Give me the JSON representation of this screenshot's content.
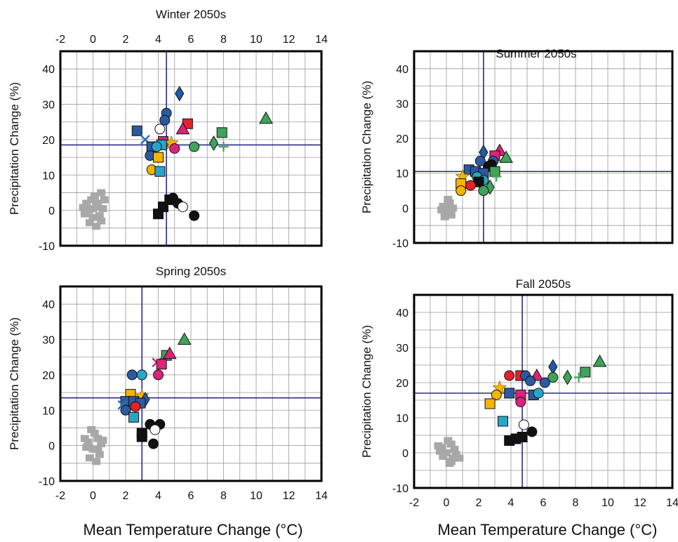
{
  "figure": {
    "xlabel": "Mean Temperature Change (°C)",
    "ylabel": "Precipitation Change (%)"
  },
  "chart_data": [
    {
      "type": "scatter",
      "title": "Winter 2050s",
      "xlabel": "",
      "ylabel": "Precipitation Change (%)",
      "xlim": [
        -2,
        14
      ],
      "ylim": [
        -10,
        45
      ],
      "xticks": [
        -2,
        0,
        2,
        4,
        6,
        8,
        10,
        12,
        14
      ],
      "yticks": [
        -10,
        0,
        10,
        20,
        30,
        40
      ],
      "xtick_position": "top",
      "grid": true,
      "reference_lines": {
        "x": 4.5,
        "y": 18.5
      },
      "gray_cloud": [
        [
          0.0,
          -2
        ],
        [
          -0.3,
          0
        ],
        [
          0.3,
          2
        ],
        [
          0.5,
          -3
        ],
        [
          -0.5,
          -1
        ],
        [
          0.1,
          4
        ],
        [
          0.6,
          0.5
        ],
        [
          -0.2,
          -3.5
        ],
        [
          0.4,
          -1.5
        ],
        [
          0.2,
          1
        ],
        [
          -0.4,
          2
        ],
        [
          0.7,
          3
        ],
        [
          0.0,
          0.5
        ],
        [
          -0.6,
          0.8
        ],
        [
          0.2,
          -4.5
        ],
        [
          0.5,
          5
        ],
        [
          -0.1,
          3
        ]
      ],
      "points": [
        {
          "x": 5.3,
          "y": 33,
          "marker": "diamond",
          "color": "#1f5aa6"
        },
        {
          "x": 10.6,
          "y": 26,
          "marker": "triangle",
          "color": "#3fa35a"
        },
        {
          "x": 4.5,
          "y": 27.5,
          "marker": "circle",
          "color": "#2c5aa0"
        },
        {
          "x": 4.4,
          "y": 25.5,
          "marker": "circle",
          "color": "#2c5aa0"
        },
        {
          "x": 2.7,
          "y": 22.5,
          "marker": "square",
          "color": "#2c5aa0"
        },
        {
          "x": 3.2,
          "y": 20,
          "marker": "x",
          "color": "#2c6fb8"
        },
        {
          "x": 5.8,
          "y": 24.5,
          "marker": "square",
          "color": "#e5202a"
        },
        {
          "x": 5.5,
          "y": 23,
          "marker": "triangle",
          "color": "#d9247a"
        },
        {
          "x": 4.1,
          "y": 23,
          "marker": "circle",
          "color": "#ffffff"
        },
        {
          "x": 7.9,
          "y": 22,
          "marker": "square",
          "color": "#3fa35a"
        },
        {
          "x": 8.0,
          "y": 18,
          "marker": "plus",
          "color": "#3fa35a"
        },
        {
          "x": 7.4,
          "y": 19,
          "marker": "diamond",
          "color": "#3fa35a"
        },
        {
          "x": 6.2,
          "y": 18,
          "marker": "circle",
          "color": "#3fa35a"
        },
        {
          "x": 4.3,
          "y": 19.5,
          "marker": "square",
          "color": "#d9247a"
        },
        {
          "x": 4.8,
          "y": 19,
          "marker": "star",
          "color": "#f5b400"
        },
        {
          "x": 4.2,
          "y": 18.5,
          "marker": "square",
          "color": "#2aa5c7"
        },
        {
          "x": 5.0,
          "y": 17.5,
          "marker": "circle",
          "color": "#d9247a"
        },
        {
          "x": 3.6,
          "y": 18,
          "marker": "square",
          "color": "#2c5aa0"
        },
        {
          "x": 3.9,
          "y": 18,
          "marker": "circle",
          "color": "#2aa5c7"
        },
        {
          "x": 3.5,
          "y": 15.5,
          "marker": "circle",
          "color": "#2c5aa0"
        },
        {
          "x": 4.0,
          "y": 15,
          "marker": "square",
          "color": "#f5b400"
        },
        {
          "x": 3.6,
          "y": 11.5,
          "marker": "circle",
          "color": "#f5b400"
        },
        {
          "x": 4.1,
          "y": 11,
          "marker": "square",
          "color": "#2aa5c7"
        },
        {
          "x": 4.9,
          "y": 3.5,
          "marker": "circle",
          "color": "#111111"
        },
        {
          "x": 5.2,
          "y": 2,
          "marker": "circle",
          "color": "#111111"
        },
        {
          "x": 5.5,
          "y": 1,
          "marker": "circle",
          "color": "#ffffff"
        },
        {
          "x": 4.7,
          "y": 3,
          "marker": "square",
          "color": "#111111"
        },
        {
          "x": 4.3,
          "y": 1,
          "marker": "square",
          "color": "#111111"
        },
        {
          "x": 4.0,
          "y": -1,
          "marker": "square",
          "color": "#111111"
        },
        {
          "x": 6.2,
          "y": -1.5,
          "marker": "circle",
          "color": "#111111"
        }
      ]
    },
    {
      "type": "scatter",
      "title": "Summer 2050s",
      "xlabel": "",
      "ylabel": "Precipitation Change (%)",
      "xlim": [
        -2,
        14
      ],
      "ylim": [
        -10,
        45
      ],
      "xticks": [
        -2,
        0,
        2,
        4,
        6,
        8,
        10,
        12,
        14
      ],
      "yticks": [
        -10,
        0,
        10,
        20,
        30,
        40
      ],
      "xtick_position": "none",
      "grid": true,
      "reference_lines": {
        "x": 2.3,
        "y": 10.5
      },
      "gray_cloud": [
        [
          0.0,
          -1
        ],
        [
          -0.2,
          0.5
        ],
        [
          0.2,
          1.5
        ],
        [
          0.3,
          -2
        ],
        [
          -0.3,
          -0.5
        ],
        [
          0.1,
          2.5
        ],
        [
          0.4,
          0
        ],
        [
          -0.1,
          -2.5
        ],
        [
          0.2,
          -0.5
        ]
      ],
      "points": [
        {
          "x": 2.3,
          "y": 16,
          "marker": "diamond",
          "color": "#1f5aa6"
        },
        {
          "x": 3.3,
          "y": 16.5,
          "marker": "triangle",
          "color": "#d9247a"
        },
        {
          "x": 3.0,
          "y": 15,
          "marker": "square",
          "color": "#d9247a"
        },
        {
          "x": 3.7,
          "y": 14.5,
          "marker": "triangle",
          "color": "#3fa35a"
        },
        {
          "x": 2.1,
          "y": 13.5,
          "marker": "circle",
          "color": "#2c5aa0"
        },
        {
          "x": 2.9,
          "y": 13.5,
          "marker": "circle",
          "color": "#2c5aa0"
        },
        {
          "x": 2.6,
          "y": 12,
          "marker": "circle",
          "color": "#111111"
        },
        {
          "x": 2.8,
          "y": 12.5,
          "marker": "circle",
          "color": "#111111"
        },
        {
          "x": 1.4,
          "y": 11,
          "marker": "square",
          "color": "#2c5aa0"
        },
        {
          "x": 1.8,
          "y": 10.5,
          "marker": "square",
          "color": "#2c5aa0"
        },
        {
          "x": 2.3,
          "y": 10,
          "marker": "square",
          "color": "#2c5aa0"
        },
        {
          "x": 3.0,
          "y": 10.5,
          "marker": "square",
          "color": "#3fa35a"
        },
        {
          "x": 1.0,
          "y": 9,
          "marker": "star",
          "color": "#f5b400"
        },
        {
          "x": 3.1,
          "y": 9,
          "marker": "plus",
          "color": "#3fa35a"
        },
        {
          "x": 1.9,
          "y": 9,
          "marker": "circle",
          "color": "#2aa5c7"
        },
        {
          "x": 2.3,
          "y": 8,
          "marker": "circle",
          "color": "#2aa5c7"
        },
        {
          "x": 2.0,
          "y": 7.5,
          "marker": "square",
          "color": "#111111"
        },
        {
          "x": 0.9,
          "y": 7,
          "marker": "square",
          "color": "#f5b400"
        },
        {
          "x": 1.5,
          "y": 6.5,
          "marker": "circle",
          "color": "#e5202a"
        },
        {
          "x": 2.7,
          "y": 6,
          "marker": "diamond",
          "color": "#3fa35a"
        },
        {
          "x": 0.9,
          "y": 5,
          "marker": "circle",
          "color": "#f5b400"
        },
        {
          "x": 2.3,
          "y": 5,
          "marker": "circle",
          "color": "#3fa35a"
        }
      ]
    },
    {
      "type": "scatter",
      "title": "Spring 2050s",
      "xlabel": "Mean Temperature Change (°C)",
      "ylabel": "Precipitation Change (%)",
      "xlim": [
        -2,
        14
      ],
      "ylim": [
        -10,
        45
      ],
      "xticks": [
        -2,
        0,
        2,
        4,
        6,
        8,
        10,
        12,
        14
      ],
      "yticks": [
        -10,
        0,
        10,
        20,
        30,
        40
      ],
      "xtick_position": "bottom",
      "grid": true,
      "reference_lines": {
        "x": 3.0,
        "y": 13.5
      },
      "gray_cloud": [
        [
          0.0,
          -1
        ],
        [
          -0.3,
          1
        ],
        [
          0.3,
          2
        ],
        [
          0.4,
          -2.5
        ],
        [
          -0.4,
          -0.5
        ],
        [
          0.1,
          3.5
        ],
        [
          0.5,
          0.5
        ],
        [
          -0.2,
          -3.5
        ],
        [
          0.3,
          -1
        ],
        [
          -0.1,
          4.5
        ],
        [
          0.6,
          1.5
        ],
        [
          -0.5,
          2
        ],
        [
          0.2,
          -4.5
        ]
      ],
      "points": [
        {
          "x": 5.6,
          "y": 30,
          "marker": "triangle",
          "color": "#3fa35a"
        },
        {
          "x": 4.5,
          "y": 25.5,
          "marker": "square",
          "color": "#3fa35a"
        },
        {
          "x": 4.7,
          "y": 26,
          "marker": "triangle",
          "color": "#d9247a"
        },
        {
          "x": 3.9,
          "y": 23.5,
          "marker": "x",
          "color": "#d9247a"
        },
        {
          "x": 4.2,
          "y": 23,
          "marker": "square",
          "color": "#d9247a"
        },
        {
          "x": 4.0,
          "y": 20,
          "marker": "circle",
          "color": "#d9247a"
        },
        {
          "x": 2.4,
          "y": 20,
          "marker": "circle",
          "color": "#2c5aa0"
        },
        {
          "x": 3.0,
          "y": 20,
          "marker": "circle",
          "color": "#2aa5c7"
        },
        {
          "x": 2.3,
          "y": 14.5,
          "marker": "square",
          "color": "#f5b400"
        },
        {
          "x": 3.0,
          "y": 14,
          "marker": "star",
          "color": "#f5b400"
        },
        {
          "x": 3.2,
          "y": 13,
          "marker": "diamond",
          "color": "#2c5aa0"
        },
        {
          "x": 2.0,
          "y": 12.5,
          "marker": "square",
          "color": "#2c5aa0"
        },
        {
          "x": 2.5,
          "y": 12.5,
          "marker": "square",
          "color": "#2c5aa0"
        },
        {
          "x": 2.9,
          "y": 12,
          "marker": "square",
          "color": "#2c5aa0"
        },
        {
          "x": 1.8,
          "y": 11.5,
          "marker": "x",
          "color": "#2c6fb8"
        },
        {
          "x": 2.6,
          "y": 11,
          "marker": "circle",
          "color": "#e5202a"
        },
        {
          "x": 2.0,
          "y": 10,
          "marker": "circle",
          "color": "#2c5aa0"
        },
        {
          "x": 2.5,
          "y": 8,
          "marker": "square",
          "color": "#2aa5c7"
        },
        {
          "x": 3.5,
          "y": 6,
          "marker": "circle",
          "color": "#111111"
        },
        {
          "x": 4.1,
          "y": 6,
          "marker": "circle",
          "color": "#111111"
        },
        {
          "x": 3.8,
          "y": 4.5,
          "marker": "circle",
          "color": "#ffffff"
        },
        {
          "x": 3.0,
          "y": 3.5,
          "marker": "square",
          "color": "#111111"
        },
        {
          "x": 3.0,
          "y": 2.5,
          "marker": "square",
          "color": "#111111"
        },
        {
          "x": 3.7,
          "y": 0.5,
          "marker": "circle",
          "color": "#111111"
        }
      ]
    },
    {
      "type": "scatter",
      "title": "Fall 2050s",
      "xlabel": "Mean Temperature Change (°C)",
      "ylabel": "Precipitation Change (%)",
      "xlim": [
        -2,
        14
      ],
      "ylim": [
        -10,
        45
      ],
      "xticks": [
        -2,
        0,
        2,
        4,
        6,
        8,
        10,
        12,
        14
      ],
      "yticks": [
        -10,
        0,
        10,
        20,
        30,
        40
      ],
      "xtick_position": "bottom",
      "grid": true,
      "reference_lines": {
        "x": 4.7,
        "y": 17.0
      },
      "gray_cloud": [
        [
          0.0,
          0
        ],
        [
          -0.3,
          1.5
        ],
        [
          0.3,
          2.5
        ],
        [
          0.4,
          -1.5
        ],
        [
          -0.4,
          0.5
        ],
        [
          0.1,
          3.5
        ],
        [
          0.6,
          -0.5
        ],
        [
          -0.2,
          -1
        ],
        [
          0.3,
          -2.5
        ],
        [
          0.8,
          -1.5
        ],
        [
          -0.5,
          2
        ],
        [
          0.5,
          1
        ],
        [
          0.2,
          -3
        ]
      ],
      "points": [
        {
          "x": 9.5,
          "y": 26,
          "marker": "triangle",
          "color": "#3fa35a"
        },
        {
          "x": 6.6,
          "y": 24.5,
          "marker": "diamond",
          "color": "#1f5aa6"
        },
        {
          "x": 8.6,
          "y": 23,
          "marker": "square",
          "color": "#3fa35a"
        },
        {
          "x": 7.5,
          "y": 21.5,
          "marker": "diamond",
          "color": "#3fa35a"
        },
        {
          "x": 8.2,
          "y": 21.5,
          "marker": "plus",
          "color": "#3fa35a"
        },
        {
          "x": 6.6,
          "y": 21.5,
          "marker": "circle",
          "color": "#3fa35a"
        },
        {
          "x": 5.6,
          "y": 22,
          "marker": "triangle",
          "color": "#d9247a"
        },
        {
          "x": 3.9,
          "y": 22,
          "marker": "circle",
          "color": "#e5202a"
        },
        {
          "x": 4.6,
          "y": 22,
          "marker": "square",
          "color": "#e5202a"
        },
        {
          "x": 4.9,
          "y": 22,
          "marker": "circle",
          "color": "#2c5aa0"
        },
        {
          "x": 5.2,
          "y": 20.5,
          "marker": "circle",
          "color": "#2c5aa0"
        },
        {
          "x": 6.1,
          "y": 20,
          "marker": "circle",
          "color": "#2c5aa0"
        },
        {
          "x": 3.3,
          "y": 18.5,
          "marker": "star",
          "color": "#f5b400"
        },
        {
          "x": 3.9,
          "y": 17,
          "marker": "square",
          "color": "#2c5aa0"
        },
        {
          "x": 4.6,
          "y": 16.5,
          "marker": "square",
          "color": "#d9247a"
        },
        {
          "x": 5.4,
          "y": 16.5,
          "marker": "square",
          "color": "#2c5aa0"
        },
        {
          "x": 5.7,
          "y": 17,
          "marker": "circle",
          "color": "#2aa5c7"
        },
        {
          "x": 3.1,
          "y": 16.5,
          "marker": "circle",
          "color": "#f5b400"
        },
        {
          "x": 4.6,
          "y": 14.5,
          "marker": "circle",
          "color": "#d9247a"
        },
        {
          "x": 2.7,
          "y": 14,
          "marker": "square",
          "color": "#f5b400"
        },
        {
          "x": 3.5,
          "y": 9,
          "marker": "square",
          "color": "#2aa5c7"
        },
        {
          "x": 4.8,
          "y": 8,
          "marker": "circle",
          "color": "#ffffff"
        },
        {
          "x": 5.3,
          "y": 6,
          "marker": "circle",
          "color": "#111111"
        },
        {
          "x": 4.7,
          "y": 4.5,
          "marker": "square",
          "color": "#111111"
        },
        {
          "x": 4.3,
          "y": 4,
          "marker": "square",
          "color": "#111111"
        },
        {
          "x": 3.9,
          "y": 3.5,
          "marker": "square",
          "color": "#111111"
        }
      ]
    }
  ]
}
